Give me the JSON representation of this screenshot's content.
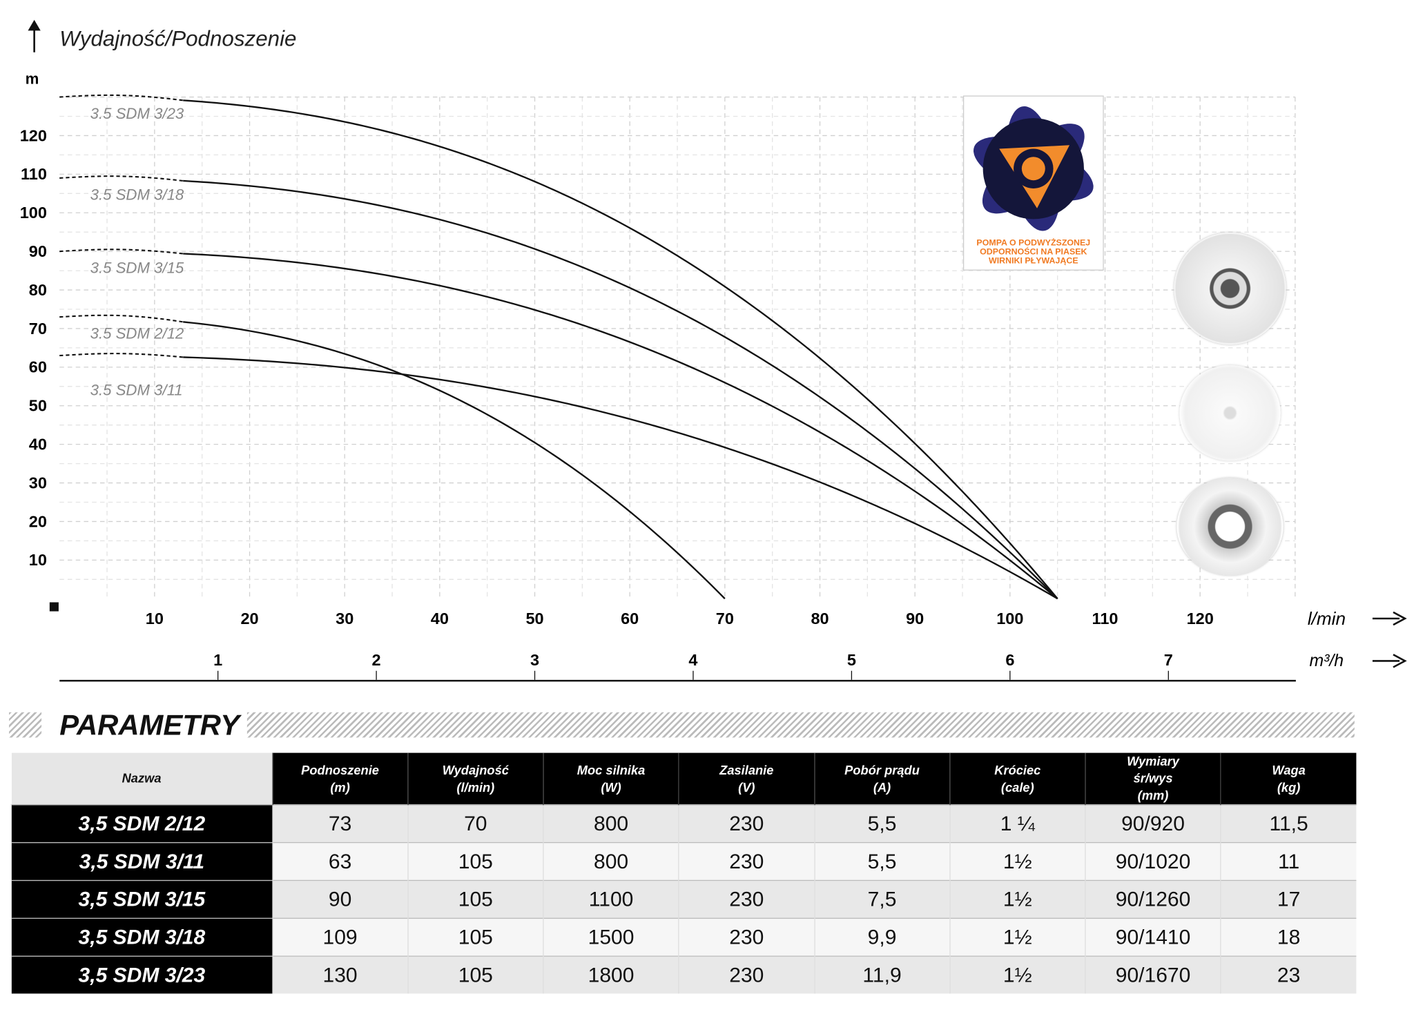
{
  "chart_data": {
    "type": "line",
    "title": "Wydajność/Podnoszenie",
    "ylabel": "m",
    "xlabel": "l/min",
    "x2label": "m³/h",
    "xlim": [
      0,
      130
    ],
    "ylim": [
      0,
      130
    ],
    "xticks": [
      10,
      20,
      30,
      40,
      50,
      60,
      70,
      80,
      90,
      100,
      110,
      120
    ],
    "yticks": [
      10,
      20,
      30,
      40,
      50,
      60,
      70,
      80,
      90,
      100,
      110,
      120
    ],
    "x2ticks": [
      1,
      2,
      3,
      4,
      5,
      6,
      7
    ],
    "grid": true,
    "series": [
      {
        "name": "3.5 SDM 3/23",
        "shutoff_head": 130,
        "max_flow": 105
      },
      {
        "name": "3.5 SDM 3/18",
        "shutoff_head": 109,
        "max_flow": 105
      },
      {
        "name": "3.5 SDM 3/15",
        "shutoff_head": 90,
        "max_flow": 105
      },
      {
        "name": "3.5 SDM 2/12",
        "shutoff_head": 73,
        "max_flow": 70
      },
      {
        "name": "3.5 SDM 3/11",
        "shutoff_head": 63,
        "max_flow": 105
      }
    ]
  },
  "logo": {
    "caption": [
      "POMPA O PODWYŻSZONEJ",
      "ODPORNOŚCI NA PIASEK",
      "WIRNIKI PŁYWAJĄCE"
    ]
  },
  "params": {
    "title": "PARAMETRY",
    "headers": [
      [
        "Nazwa"
      ],
      [
        "Podnoszenie",
        "(m)"
      ],
      [
        "Wydajność",
        "(l/min)"
      ],
      [
        "Moc silnika",
        "(W)"
      ],
      [
        "Zasilanie",
        "(V)"
      ],
      [
        "Pobór prądu",
        "(A)"
      ],
      [
        "Króciec",
        "(cale)"
      ],
      [
        "Wymiary",
        "śr/wys",
        "(mm)"
      ],
      [
        "Waga",
        "(kg)"
      ]
    ],
    "rows": [
      [
        "3,5 SDM 2/12",
        "73",
        "70",
        "800",
        "230",
        "5,5",
        "1 ¼",
        "90/920",
        "11,5"
      ],
      [
        "3,5 SDM 3/11",
        "63",
        "105",
        "800",
        "230",
        "5,5",
        "1½",
        "90/1020",
        "11"
      ],
      [
        "3,5 SDM 3/15",
        "90",
        "105",
        "1100",
        "230",
        "7,5",
        "1½",
        "90/1260",
        "17"
      ],
      [
        "3,5 SDM 3/18",
        "109",
        "105",
        "1500",
        "230",
        "9,9",
        "1½",
        "90/1410",
        "18"
      ],
      [
        "3,5 SDM 3/23",
        "130",
        "105",
        "1800",
        "230",
        "11,9",
        "1½",
        "90/1670",
        "23"
      ]
    ]
  }
}
